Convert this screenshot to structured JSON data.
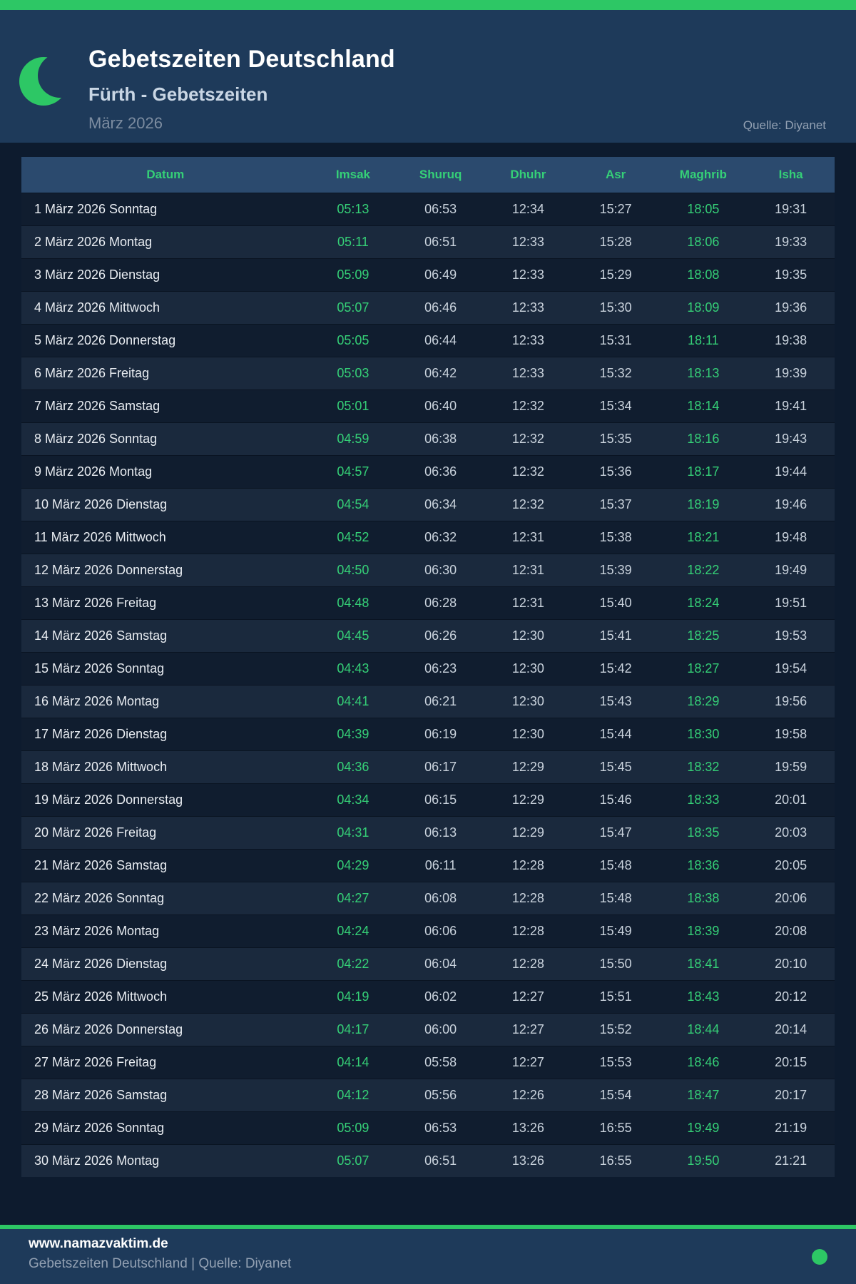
{
  "palette": {
    "accent_green": "#2dc765",
    "highlight_green": "#35d077",
    "page_background": "#0d1b2e",
    "panel_background": "#1e3a5a",
    "table_header_background": "#2b4a6e",
    "row_odd": "#101d2f",
    "row_even": "#1a293d"
  },
  "header": {
    "moon_icon": "crescent-moon-icon",
    "title": "Gebetszeiten Deutschland",
    "subtitle": "Fürth - Gebetszeiten",
    "period": "März 2026",
    "source": "Quelle: Diyanet"
  },
  "table": {
    "columns": [
      "Datum",
      "Imsak",
      "Shuruq",
      "Dhuhr",
      "Asr",
      "Maghrib",
      "Isha"
    ],
    "highlight_columns": [
      1,
      5
    ],
    "rows": [
      [
        "1 März 2026 Sonntag",
        "05:13",
        "06:53",
        "12:34",
        "15:27",
        "18:05",
        "19:31"
      ],
      [
        "2 März 2026 Montag",
        "05:11",
        "06:51",
        "12:33",
        "15:28",
        "18:06",
        "19:33"
      ],
      [
        "3 März 2026 Dienstag",
        "05:09",
        "06:49",
        "12:33",
        "15:29",
        "18:08",
        "19:35"
      ],
      [
        "4 März 2026 Mittwoch",
        "05:07",
        "06:46",
        "12:33",
        "15:30",
        "18:09",
        "19:36"
      ],
      [
        "5 März 2026 Donnerstag",
        "05:05",
        "06:44",
        "12:33",
        "15:31",
        "18:11",
        "19:38"
      ],
      [
        "6 März 2026 Freitag",
        "05:03",
        "06:42",
        "12:33",
        "15:32",
        "18:13",
        "19:39"
      ],
      [
        "7 März 2026 Samstag",
        "05:01",
        "06:40",
        "12:32",
        "15:34",
        "18:14",
        "19:41"
      ],
      [
        "8 März 2026 Sonntag",
        "04:59",
        "06:38",
        "12:32",
        "15:35",
        "18:16",
        "19:43"
      ],
      [
        "9 März 2026 Montag",
        "04:57",
        "06:36",
        "12:32",
        "15:36",
        "18:17",
        "19:44"
      ],
      [
        "10 März 2026 Dienstag",
        "04:54",
        "06:34",
        "12:32",
        "15:37",
        "18:19",
        "19:46"
      ],
      [
        "11 März 2026 Mittwoch",
        "04:52",
        "06:32",
        "12:31",
        "15:38",
        "18:21",
        "19:48"
      ],
      [
        "12 März 2026 Donnerstag",
        "04:50",
        "06:30",
        "12:31",
        "15:39",
        "18:22",
        "19:49"
      ],
      [
        "13 März 2026 Freitag",
        "04:48",
        "06:28",
        "12:31",
        "15:40",
        "18:24",
        "19:51"
      ],
      [
        "14 März 2026 Samstag",
        "04:45",
        "06:26",
        "12:30",
        "15:41",
        "18:25",
        "19:53"
      ],
      [
        "15 März 2026 Sonntag",
        "04:43",
        "06:23",
        "12:30",
        "15:42",
        "18:27",
        "19:54"
      ],
      [
        "16 März 2026 Montag",
        "04:41",
        "06:21",
        "12:30",
        "15:43",
        "18:29",
        "19:56"
      ],
      [
        "17 März 2026 Dienstag",
        "04:39",
        "06:19",
        "12:30",
        "15:44",
        "18:30",
        "19:58"
      ],
      [
        "18 März 2026 Mittwoch",
        "04:36",
        "06:17",
        "12:29",
        "15:45",
        "18:32",
        "19:59"
      ],
      [
        "19 März 2026 Donnerstag",
        "04:34",
        "06:15",
        "12:29",
        "15:46",
        "18:33",
        "20:01"
      ],
      [
        "20 März 2026 Freitag",
        "04:31",
        "06:13",
        "12:29",
        "15:47",
        "18:35",
        "20:03"
      ],
      [
        "21 März 2026 Samstag",
        "04:29",
        "06:11",
        "12:28",
        "15:48",
        "18:36",
        "20:05"
      ],
      [
        "22 März 2026 Sonntag",
        "04:27",
        "06:08",
        "12:28",
        "15:48",
        "18:38",
        "20:06"
      ],
      [
        "23 März 2026 Montag",
        "04:24",
        "06:06",
        "12:28",
        "15:49",
        "18:39",
        "20:08"
      ],
      [
        "24 März 2026 Dienstag",
        "04:22",
        "06:04",
        "12:28",
        "15:50",
        "18:41",
        "20:10"
      ],
      [
        "25 März 2026 Mittwoch",
        "04:19",
        "06:02",
        "12:27",
        "15:51",
        "18:43",
        "20:12"
      ],
      [
        "26 März 2026 Donnerstag",
        "04:17",
        "06:00",
        "12:27",
        "15:52",
        "18:44",
        "20:14"
      ],
      [
        "27 März 2026 Freitag",
        "04:14",
        "05:58",
        "12:27",
        "15:53",
        "18:46",
        "20:15"
      ],
      [
        "28 März 2026 Samstag",
        "04:12",
        "05:56",
        "12:26",
        "15:54",
        "18:47",
        "20:17"
      ],
      [
        "29 März 2026 Sonntag",
        "05:09",
        "06:53",
        "13:26",
        "16:55",
        "19:49",
        "21:19"
      ],
      [
        "30 März 2026 Montag",
        "05:07",
        "06:51",
        "13:26",
        "16:55",
        "19:50",
        "21:21"
      ]
    ]
  },
  "footer": {
    "website": "www.namazvaktim.de",
    "tagline": "Gebetszeiten Deutschland | Quelle: Diyanet",
    "status_dot_icon": "green-dot-icon"
  }
}
